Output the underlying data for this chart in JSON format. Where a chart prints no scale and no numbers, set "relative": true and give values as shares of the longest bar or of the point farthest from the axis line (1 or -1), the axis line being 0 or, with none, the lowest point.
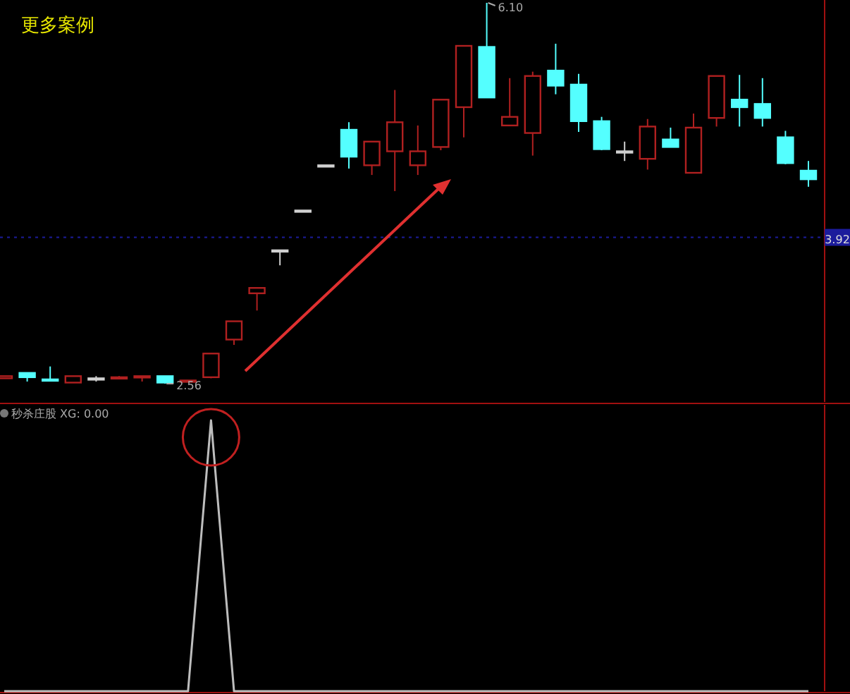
{
  "chart_data": [
    {
      "type": "candlestick",
      "title": "更多案例",
      "categories": [
        null,
        null,
        null,
        null,
        null,
        null,
        null,
        null,
        null,
        null,
        null,
        null,
        null,
        null,
        null,
        null,
        null,
        null,
        null,
        null,
        null,
        null,
        null,
        null,
        null,
        null,
        null,
        null,
        null,
        null,
        null,
        null,
        null,
        null,
        null,
        null
      ],
      "ohlc": [
        [
          2.61,
          2.63,
          2.61,
          2.63
        ],
        [
          2.66,
          2.66,
          2.58,
          2.62
        ],
        [
          2.6,
          2.72,
          2.59,
          2.59
        ],
        [
          2.57,
          2.63,
          2.57,
          2.63
        ],
        [
          2.61,
          2.63,
          2.58,
          2.61
        ],
        [
          2.61,
          2.63,
          2.61,
          2.62
        ],
        [
          2.62,
          2.63,
          2.58,
          2.63
        ],
        [
          2.63,
          2.63,
          2.56,
          2.57
        ],
        [
          2.58,
          2.59,
          2.58,
          2.59
        ],
        [
          2.62,
          2.84,
          2.61,
          2.84
        ],
        [
          2.97,
          3.14,
          2.92,
          3.14
        ],
        [
          3.4,
          3.45,
          3.24,
          3.45
        ],
        [
          3.8,
          3.8,
          3.66,
          3.8
        ],
        [
          4.17,
          4.17,
          4.17,
          4.17
        ],
        [
          4.59,
          4.59,
          4.59,
          4.59
        ],
        [
          4.92,
          4.99,
          4.56,
          4.67
        ],
        [
          4.59,
          4.81,
          4.5,
          4.81
        ],
        [
          4.72,
          5.29,
          4.35,
          4.99
        ],
        [
          4.59,
          4.96,
          4.5,
          4.72
        ],
        [
          4.76,
          5.2,
          4.73,
          5.2
        ],
        [
          5.13,
          5.7,
          4.85,
          5.7
        ],
        [
          5.69,
          6.1,
          5.22,
          5.22
        ],
        [
          4.96,
          5.4,
          4.96,
          5.04
        ],
        [
          4.89,
          5.46,
          4.68,
          5.42
        ],
        [
          5.47,
          5.72,
          5.25,
          5.33
        ],
        [
          5.34,
          5.44,
          4.9,
          5.0
        ],
        [
          5.0,
          5.04,
          4.73,
          4.74
        ],
        [
          4.72,
          4.81,
          4.63,
          4.72
        ],
        [
          4.65,
          5.02,
          4.55,
          4.95
        ],
        [
          4.83,
          4.94,
          4.76,
          4.76
        ],
        [
          4.52,
          5.07,
          4.52,
          4.94
        ],
        [
          5.03,
          5.42,
          4.95,
          5.42
        ],
        [
          5.2,
          5.43,
          4.95,
          5.13
        ],
        [
          5.16,
          5.4,
          4.95,
          5.03
        ],
        [
          4.85,
          4.91,
          4.6,
          4.61
        ],
        [
          4.54,
          4.63,
          4.39,
          4.46
        ]
      ],
      "colors": [
        "#b02020",
        "#54ffff",
        "#54ffff",
        "#b02020",
        "#d0d0d0",
        "#b02020",
        "#b02020",
        "#54ffff",
        "#b02020",
        "#b02020",
        "#b02020",
        "#b02020",
        "#d0d0d0",
        "#d0d0d0",
        "#d0d0d0",
        "#54ffff",
        "#b02020",
        "#b02020",
        "#b02020",
        "#b02020",
        "#b02020",
        "#54ffff",
        "#b02020",
        "#b02020",
        "#54ffff",
        "#54ffff",
        "#54ffff",
        "#d0d0d0",
        "#b02020",
        "#54ffff",
        "#b02020",
        "#b02020",
        "#54ffff",
        "#54ffff",
        "#54ffff",
        "#54ffff"
      ],
      "annotations": [
        "6.10",
        "2.56"
      ],
      "ref_lines": [
        {
          "axis": "y",
          "value": 3.92,
          "label": "3.92",
          "color": "#1c1c9c"
        }
      ]
    },
    {
      "type": "line",
      "title": "秒杀庄股 XG: 0.00",
      "relative": true,
      "categories": [
        null,
        null,
        null,
        null,
        null,
        null,
        null,
        null,
        null,
        null,
        null,
        null,
        null,
        null,
        null,
        null,
        null,
        null,
        null,
        null,
        null,
        null,
        null,
        null,
        null,
        null,
        null,
        null,
        null,
        null,
        null,
        null,
        null,
        null,
        null,
        null
      ],
      "series": [
        {
          "color": "#bdbdbd",
          "values": [
            0,
            0,
            0,
            0,
            0,
            0,
            0,
            0,
            0,
            1,
            0,
            0,
            0,
            0,
            0,
            0,
            0,
            0,
            0,
            0,
            0,
            0,
            0,
            0,
            0,
            0,
            0,
            0,
            0,
            0,
            0,
            0,
            0,
            0,
            0,
            0
          ]
        }
      ]
    }
  ]
}
